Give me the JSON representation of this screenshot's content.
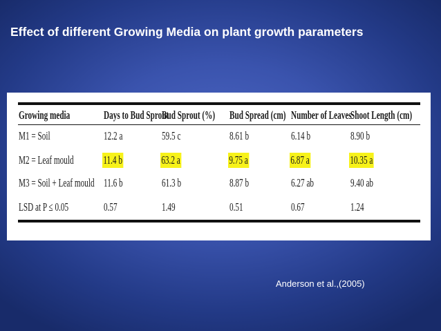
{
  "slide": {
    "title": "Effect of different Growing Media on plant growth parameters",
    "citation": "Anderson et al.,(2005)"
  },
  "table": {
    "headers": [
      "Growing media",
      "Days to Bud Sprout",
      "Bud Sprout (%)",
      "Bud Spread (cm)",
      "Number of Leaves",
      "Shoot Length (cm)"
    ],
    "rows": [
      [
        "M1 = Soil",
        "12.2 a",
        "59.5 c",
        "8.61 b",
        "6.14 b",
        "8.90 b"
      ],
      [
        "M2 = Leaf mould",
        "11.4 b",
        "63.2 a",
        "9.75 a",
        "6.87 a",
        "10.35 a"
      ],
      [
        "M3 = Soil + Leaf mould",
        "11.6 b",
        "61.3 b",
        "8.87 b",
        "6.27 ab",
        "9.40 ab"
      ],
      [
        "LSD at P ≤ 0.05",
        "0.57",
        "1.49",
        "0.51",
        "0.67",
        "1.24"
      ]
    ],
    "highlight_color": "#f7f21a"
  }
}
